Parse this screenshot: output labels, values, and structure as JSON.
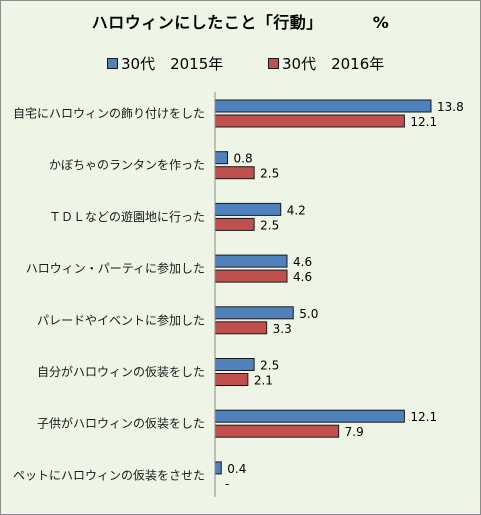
{
  "chart_data": {
    "type": "bar",
    "orientation": "horizontal",
    "title": "ハロウィンにしたこと「行動」",
    "unit": "%",
    "categories": [
      "自宅にハロウィンの飾り付けをした",
      "かぼちゃのランタンを作った",
      "ＴＤＬなどの遊園地に行った",
      "ハロウィン・パーティに参加した",
      "パレードやイベントに参加した",
      "自分がハロウィンの仮装をした",
      "子供がハロウィンの仮装をした",
      "ペットにハロウィンの仮装をさせた"
    ],
    "series": [
      {
        "name": "30代　2015年",
        "color": "#4f81bd",
        "values": [
          13.8,
          0.8,
          4.2,
          4.6,
          5.0,
          2.5,
          12.1,
          0.4
        ],
        "labels": [
          "13.8",
          "0.8",
          "4.2",
          "4.6",
          "5.0",
          "2.5",
          "12.1",
          "0.4"
        ]
      },
      {
        "name": "30代　2016年",
        "color": "#c0504d",
        "values": [
          12.1,
          2.5,
          2.5,
          4.6,
          3.3,
          2.1,
          7.9,
          null
        ],
        "labels": [
          "12.1",
          "2.5",
          "2.5",
          "4.6",
          "3.3",
          "2.1",
          "7.9",
          "-"
        ]
      }
    ],
    "xlim": [
      0,
      14
    ],
    "grid": false,
    "legend": "top"
  }
}
